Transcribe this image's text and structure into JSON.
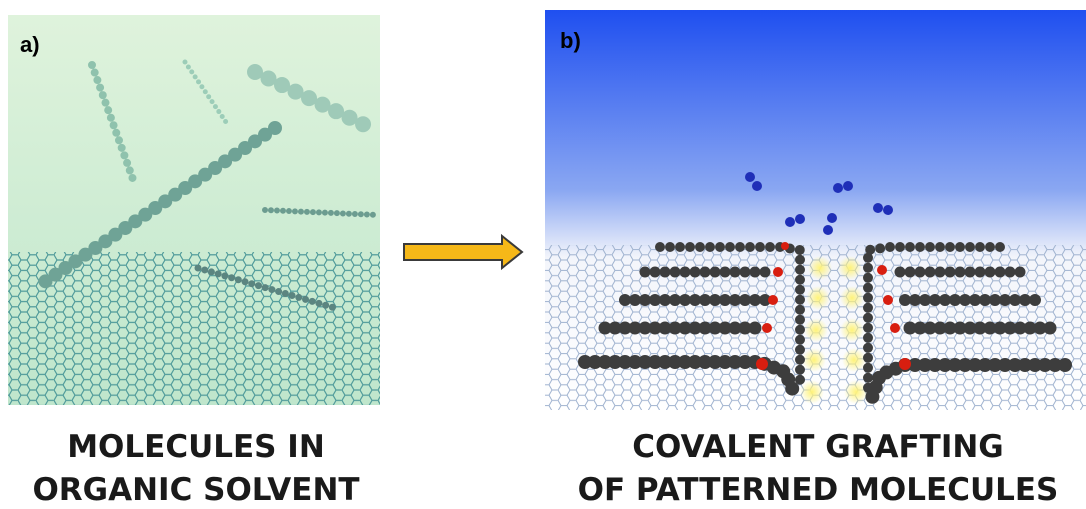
{
  "panels": [
    {
      "label": "a)",
      "caption": [
        "MOLECULES IN",
        "ORGANIC SOLVENT"
      ]
    },
    {
      "label": "b)",
      "caption": [
        "COVALENT GRAFTING",
        "OF PATTERNED MOLECULES"
      ]
    }
  ]
}
